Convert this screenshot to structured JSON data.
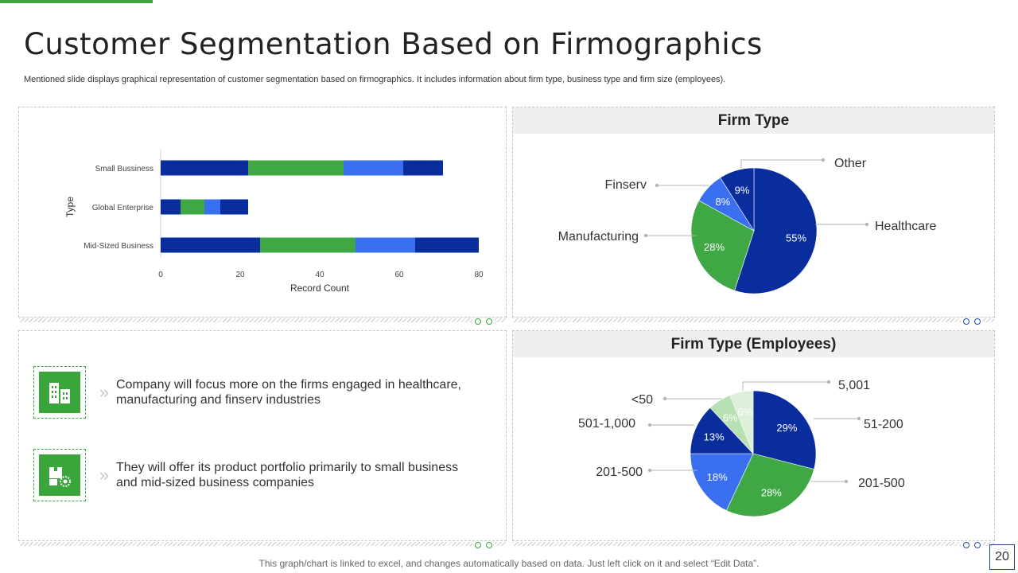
{
  "title": "Customer Segmentation Based on Firmographics",
  "subtitle": "Mentioned slide displays graphical representation of customer segmentation based on firmographics. It includes information about firm type,  business type and firm size (employees).",
  "footer_note": "This graph/chart is linked to excel, and changes automatically based on data. Just left click on it and select “Edit Data”.",
  "page_number": "20",
  "colors": {
    "accent_green": "#3aa53a",
    "navy": "#0a2d9e",
    "green": "#3fa845",
    "blue": "#3a6ff0",
    "light_green": "#b7e1b3",
    "pale_green": "#dcefd8"
  },
  "bullets": [
    {
      "icon": "office-building-icon",
      "text": "Company will focus more on the firms engaged in healthcare, manufacturing  and finserv industries"
    },
    {
      "icon": "product-boxes-gear-icon",
      "text": "They will offer its product portfolio primarily to small business and mid-sized business companies"
    }
  ],
  "chart_data": [
    {
      "type": "bar",
      "orientation": "horizontal",
      "stacked": true,
      "title": "",
      "categories": [
        "Small Bussiness",
        "Global Enterprise",
        "Mid-Sized Business"
      ],
      "series": [
        {
          "values": [
            22,
            5,
            25
          ],
          "color": "#0a2d9e"
        },
        {
          "values": [
            24,
            6,
            24
          ],
          "color": "#3fa845"
        },
        {
          "values": [
            15,
            4,
            15
          ],
          "color": "#3a6ff0"
        },
        {
          "values": [
            10,
            7,
            16
          ],
          "color": "#0a2d9e"
        }
      ],
      "xlabel": "Record Count",
      "ylabel": "Type",
      "xlim": [
        0,
        80
      ],
      "xticks": [
        "0",
        "20",
        "40",
        "60",
        "80"
      ],
      "grid": false,
      "legend": "none"
    },
    {
      "type": "pie",
      "title": "Firm Type",
      "slices": [
        {
          "label": "Healthcare",
          "value": 55,
          "value_label": "55%",
          "color": "#0a2d9e"
        },
        {
          "label": "Manufacturing",
          "value": 28,
          "value_label": "28%",
          "color": "#3fa845"
        },
        {
          "label": "Finserv",
          "value": 8,
          "value_label": "8%",
          "color": "#3a6ff0"
        },
        {
          "label": "Other",
          "value": 9,
          "value_label": "9%",
          "color": "#0a2d9e"
        }
      ]
    },
    {
      "type": "pie",
      "title": "Firm Type (Employees)",
      "slices": [
        {
          "label": "51-200",
          "value": 29,
          "value_label": "29%",
          "color": "#0a2d9e"
        },
        {
          "label": "201-500",
          "value": 28,
          "value_label": "28%",
          "color": "#3fa845"
        },
        {
          "label": "201-500",
          "value": 18,
          "value_label": "18%",
          "color": "#3a6ff0"
        },
        {
          "label": "501-1,000",
          "value": 13,
          "value_label": "13%",
          "color": "#0a2d9e"
        },
        {
          "label": "<50",
          "value": 6,
          "value_label": "6%",
          "color": "#b7e1b3"
        },
        {
          "label": "5,001",
          "value": 6,
          "value_label": "6%",
          "color": "#dcefd8"
        }
      ]
    }
  ]
}
